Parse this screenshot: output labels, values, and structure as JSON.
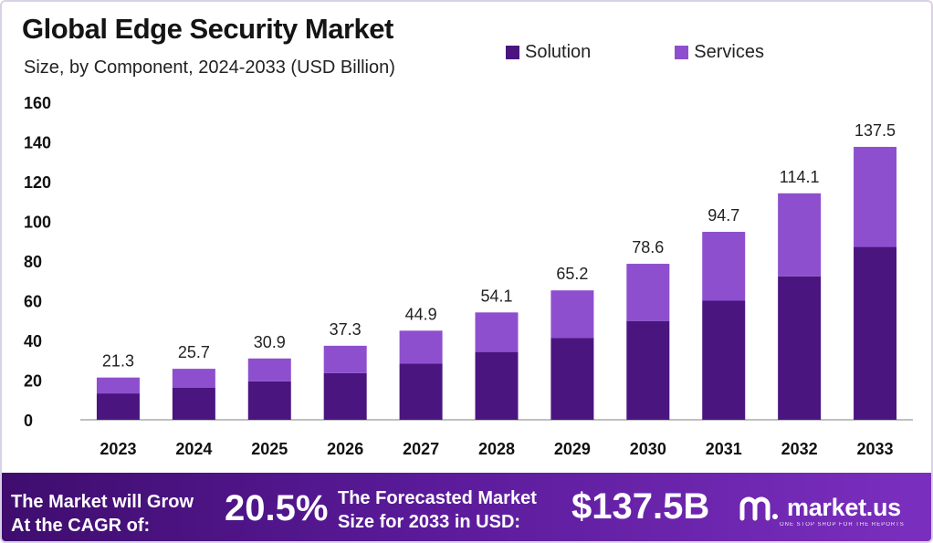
{
  "title": "Global Edge Security Market",
  "subtitle": "Size, by Component, 2024-2033 (USD Billion)",
  "colors": {
    "solution": "#4b1580",
    "services": "#8e4fcf",
    "axis": "#9a9a9a"
  },
  "chart_data": {
    "type": "bar",
    "stacked": true,
    "categories": [
      "2023",
      "2024",
      "2025",
      "2026",
      "2027",
      "2028",
      "2029",
      "2030",
      "2031",
      "2032",
      "2033"
    ],
    "series": [
      {
        "name": "Solution",
        "values": [
          13.3,
          16.1,
          19.4,
          23.5,
          28.3,
          34.2,
          41.3,
          49.8,
          60.0,
          72.3,
          87.1
        ]
      },
      {
        "name": "Services",
        "values": [
          8.0,
          9.6,
          11.5,
          13.8,
          16.6,
          19.9,
          23.9,
          28.8,
          34.7,
          41.8,
          50.4
        ]
      }
    ],
    "totals": [
      "21.3",
      "25.7",
      "30.9",
      "37.3",
      "44.9",
      "54.1",
      "65.2",
      "78.6",
      "94.7",
      "114.1",
      "137.5"
    ],
    "yticks": [
      "0",
      "20",
      "40",
      "60",
      "80",
      "100",
      "120",
      "140",
      "160"
    ],
    "ylim": [
      0,
      160
    ],
    "legend_position": "top-right",
    "grid": false
  },
  "footer": {
    "cagr_text_line1": "The Market will Grow",
    "cagr_text_line2": "At the CAGR of:",
    "cagr_value": "20.5%",
    "forecast_text_line1": "The Forecasted Market",
    "forecast_text_line2": "Size for 2033 in USD:",
    "forecast_value": "$137.5B",
    "brand": "market.us",
    "brand_tagline": "ONE STOP SHOP FOR THE REPORTS"
  }
}
